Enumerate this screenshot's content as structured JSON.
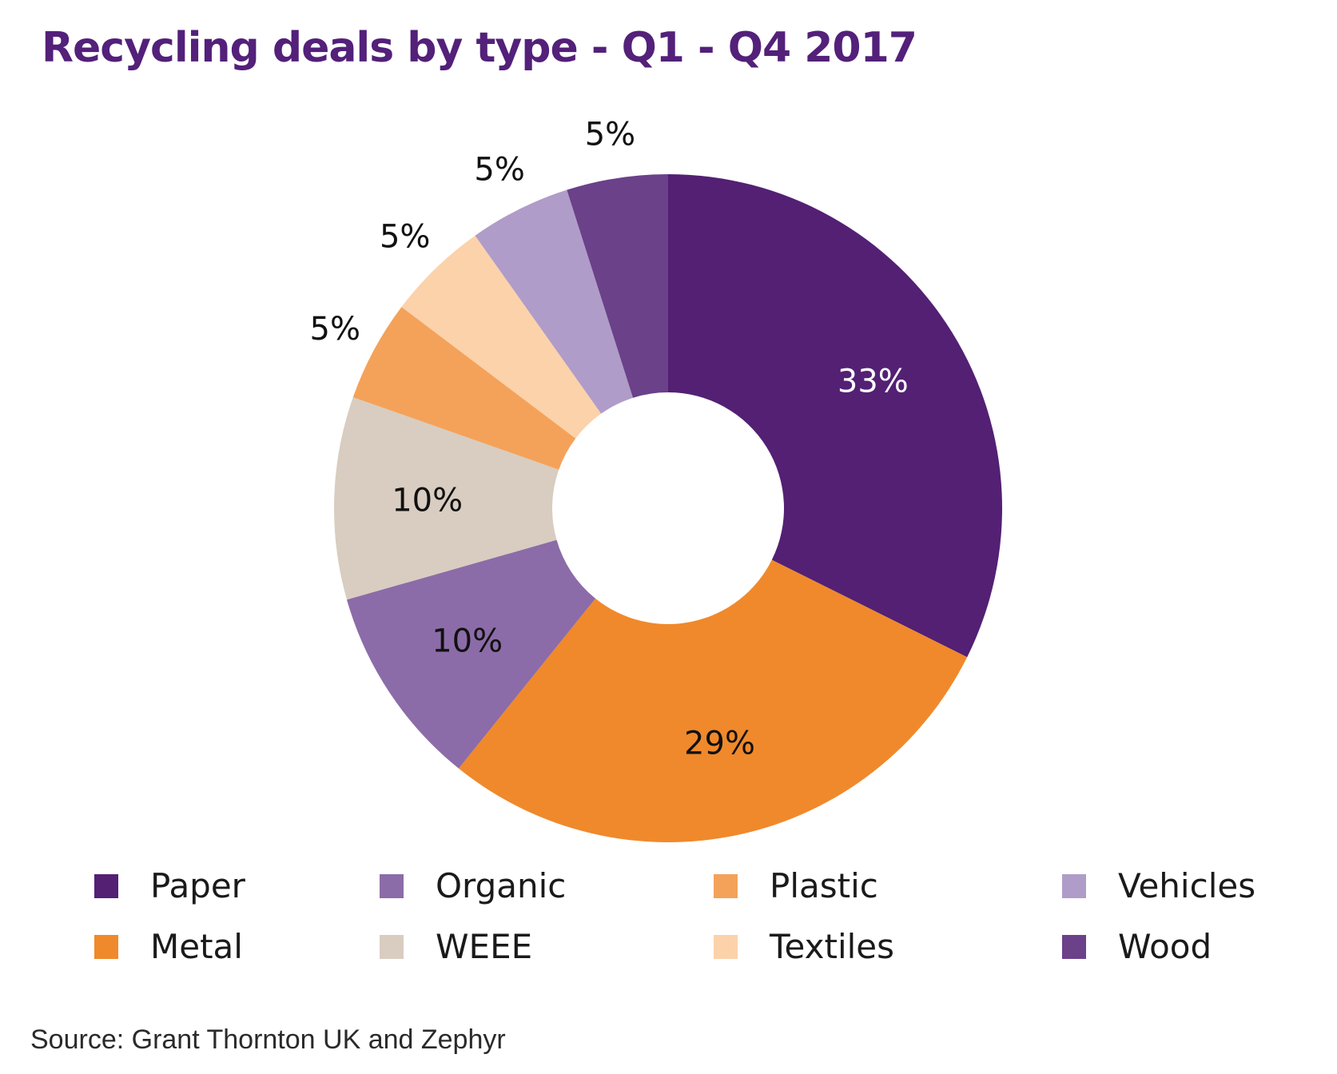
{
  "title": "Recycling deals by type - Q1 - Q4 2017",
  "source": "Source: Grant Thornton UK and Zephyr",
  "chart_data": {
    "type": "pie",
    "variant": "donut",
    "start": "top, clockwise",
    "categories": [
      "Paper",
      "Metal",
      "Organic",
      "WEEE",
      "Plastic",
      "Textiles",
      "Vehicles",
      "Wood"
    ],
    "values": [
      33,
      29,
      10,
      10,
      5,
      5,
      5,
      5
    ],
    "labels": [
      "33%",
      "29%",
      "10%",
      "10%",
      "5%",
      "5%",
      "5%",
      "5%"
    ],
    "colors": [
      "#532074",
      "#f0892b",
      "#8b6ca8",
      "#d8cdc0",
      "#f4a25a",
      "#fbd2aa",
      "#b09cc8",
      "#6b418a"
    ],
    "label_colors": [
      "#ffffff",
      "#111111",
      "#111111",
      "#111111",
      "#111111",
      "#111111",
      "#111111",
      "#111111"
    ],
    "label_placement": [
      "inside",
      "inside",
      "inside",
      "inside",
      "outside",
      "outside",
      "outside",
      "outside"
    ],
    "legend": {
      "placement": "bottom",
      "order": [
        "Paper",
        "Metal",
        "Organic",
        "WEEE",
        "Plastic",
        "Textiles",
        "Vehicles",
        "Wood"
      ]
    }
  }
}
